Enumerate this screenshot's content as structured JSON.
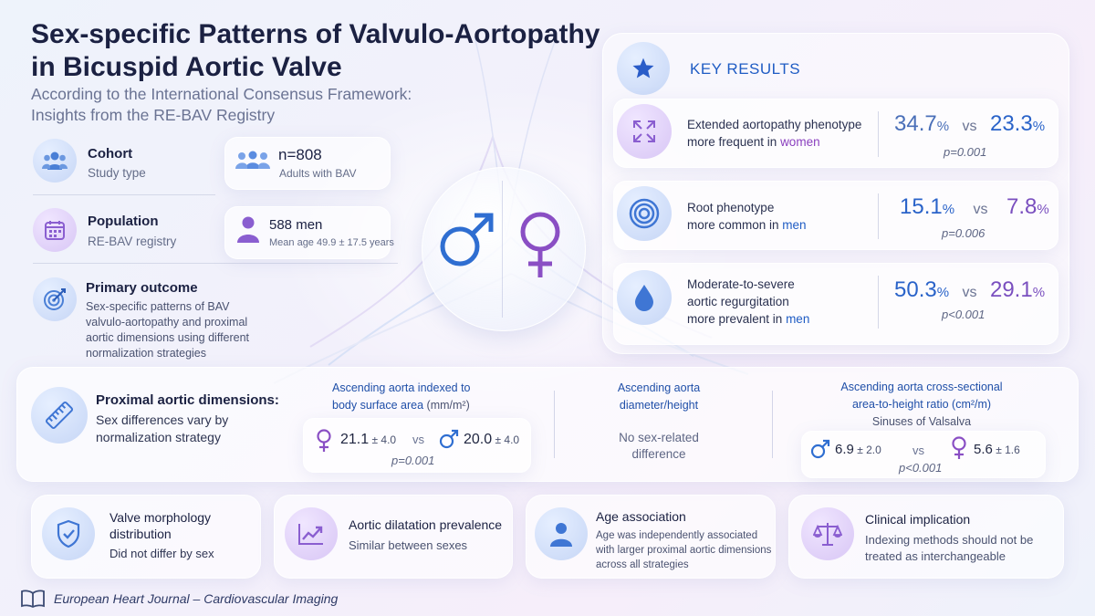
{
  "header": {
    "title_line1": "Sex-specific Patterns of Valvulo-Aortopathy",
    "title_line2": "in Bicuspid Aortic Valve",
    "subtitle_line1": "According to the International Consensus Framework:",
    "subtitle_line2": "Insights from the RE-BAV Registry"
  },
  "left": {
    "cohort": {
      "label": "Cohort",
      "sub": "Study type"
    },
    "population": {
      "label": "Population",
      "sub": "RE-BAV registry"
    },
    "primary": {
      "label": "Primary outcome",
      "lines": [
        "Sex-specific patterns of BAV",
        "valvulo-aortopathy and proximal",
        "aortic dimensions using different",
        "normalization strategies"
      ]
    },
    "n_card": {
      "value": "n=808",
      "sub": "Adults with BAV"
    },
    "men_card": {
      "value": "588 men",
      "sub": "Mean age 49.9 ± 17.5 years"
    }
  },
  "key_results": {
    "title": "KEY RESULTS",
    "items": [
      {
        "line1": "Extended aortopathy phenotype",
        "line2_pre": "more frequent in ",
        "line2_hl": "women",
        "a": "34.7",
        "b": "23.3",
        "unit": "%",
        "vs": "vs",
        "p": "p=0.001"
      },
      {
        "line1": "Root phenotype",
        "line2_pre": "more common in ",
        "line2_hl": "men",
        "a": "15.1",
        "b": "7.8",
        "unit": "%",
        "vs": "vs",
        "p": "p=0.006"
      },
      {
        "line1": "Moderate-to-severe",
        "line1b": "aortic regurgitation",
        "line2_pre": "more prevalent in ",
        "line2_hl": "men",
        "a": "50.3",
        "b": "29.1",
        "unit": "%",
        "vs": "vs",
        "p": "p<0.001"
      }
    ]
  },
  "proximal": {
    "title": "Proximal aortic dimensions:",
    "sub1": "Sex differences vary by",
    "sub2": "normalization strategy",
    "col1": {
      "h1": "Ascending aorta indexed to",
      "h2": "body surface area",
      "h2_unit": " (mm/m²)",
      "female_val": "21.1",
      "female_sd": " ± 4.0",
      "vs": "vs",
      "male_val": "20.0",
      "male_sd": " ± 4.0",
      "p": "p=0.001"
    },
    "col2": {
      "h1": "Ascending aorta",
      "h2": "diameter/height",
      "t1": "No sex-related",
      "t2": "difference"
    },
    "col3": {
      "h1": "Ascending aorta cross-sectional",
      "h2": "area-to-height ratio (cm²/m)",
      "h3": "Sinuses of Valsalva",
      "male_val": "6.9",
      "male_sd": " ± 2.0",
      "vs": "vs",
      "female_val": "5.6",
      "female_sd": " ± 1.6",
      "p": "p<0.001"
    }
  },
  "bottom": [
    {
      "title1": "Valve morphology",
      "title2": "distribution",
      "sub": "Did not differ by sex"
    },
    {
      "title1": "Aortic dilatation prevalence",
      "sub": "Similar between sexes"
    },
    {
      "title1": "Age association",
      "l1": "Age was independently associated",
      "l2": "with larger proximal aortic dimensions",
      "l3": "across all strategies"
    },
    {
      "title1": "Clinical implication",
      "l1": "Indexing methods should not be",
      "l2": "treated as interchangeable"
    }
  ],
  "footer": {
    "journal": "European Heart Journal – Cardiovascular Imaging"
  },
  "colors": {
    "male_blue": "#2a63c9",
    "female_purple": "#8a4fc4",
    "accent": "#1f5cc4"
  },
  "icons": [
    "people-icon",
    "calendar-icon",
    "target-icon",
    "person-icon",
    "star-icon",
    "expand-arrows-icon",
    "concentric-rings-icon",
    "droplet-icon",
    "ruler-icon",
    "shield-check-icon",
    "trend-chart-icon",
    "user-icon",
    "scales-icon",
    "book-icon",
    "male-symbol-icon",
    "female-symbol-icon"
  ]
}
